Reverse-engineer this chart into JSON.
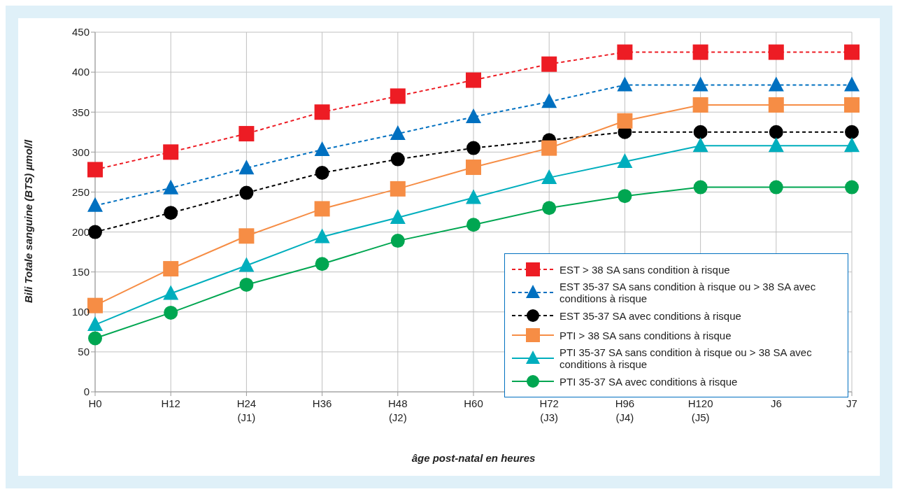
{
  "chart_data": {
    "type": "line",
    "xlabel": "âge post-natal en heures",
    "ylabel": "Bili Totale sanguine (BTS) µmol/l",
    "categories": [
      "H0",
      "H12",
      "H24\n(J1)",
      "H36",
      "H48\n(J2)",
      "H60",
      "H72\n(J3)",
      "H96\n(J4)",
      "H120\n(J5)",
      "J6",
      "J7"
    ],
    "ylim": [
      0,
      450
    ],
    "yticks": [
      0,
      50,
      100,
      150,
      200,
      250,
      300,
      350,
      400,
      450
    ],
    "grid": true,
    "legend": "bottom right",
    "series": [
      {
        "name": "EST > 38 SA sans condition à risque",
        "color": "#ed1c24",
        "marker": "square",
        "line_style": "dashed",
        "values": [
          278,
          300,
          323,
          350,
          370,
          390,
          410,
          425,
          425,
          425,
          425
        ]
      },
      {
        "name": "EST 35-37 SA sans condition à risque ou > 38 SA avec conditions à risque",
        "color": "#0070c0",
        "marker": "triangle",
        "line_style": "dashed",
        "values": [
          233,
          255,
          280,
          303,
          323,
          344,
          363,
          384,
          384,
          384,
          384
        ]
      },
      {
        "name": "EST 35-37 SA avec conditions à risque",
        "color": "#000000",
        "marker": "circle",
        "line_style": "dashed",
        "values": [
          200,
          224,
          249,
          274,
          291,
          305,
          315,
          325,
          325,
          325,
          325
        ]
      },
      {
        "name": "PTI > 38 SA sans conditions à risque",
        "color": "#f68d45",
        "marker": "square",
        "line_style": "solid",
        "values": [
          108,
          154,
          195,
          229,
          254,
          281,
          305,
          339,
          359,
          359,
          359
        ]
      },
      {
        "name": "PTI 35-37 SA sans condition à risque ou > 38 SA avec conditions à risque",
        "color": "#00aebd",
        "marker": "triangle",
        "line_style": "solid",
        "values": [
          84,
          123,
          158,
          194,
          218,
          243,
          268,
          288,
          308,
          308,
          308
        ]
      },
      {
        "name": "PTI 35-37 SA avec conditions à risque",
        "color": "#00a651",
        "marker": "circle",
        "line_style": "solid",
        "values": [
          67,
          99,
          134,
          160,
          189,
          209,
          230,
          245,
          256,
          256,
          256
        ]
      }
    ]
  }
}
